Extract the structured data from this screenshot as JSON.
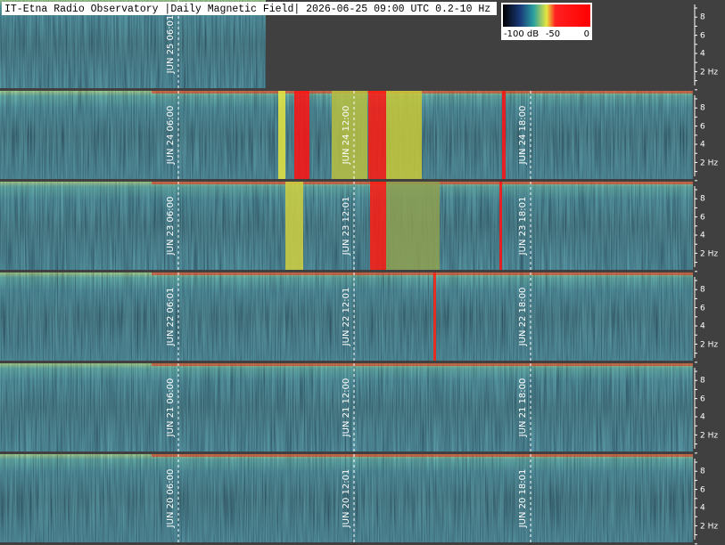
{
  "header": {
    "title": "IT-Etna Radio Observatory |Daily Magnetic Field| 2026-06-25 09:00 UTC 0.2-10 Hz"
  },
  "colorbar": {
    "labels": [
      "-100 dB",
      "-50",
      "0"
    ]
  },
  "frequency_ticks": [
    "8",
    "6",
    "4",
    "2 Hz"
  ],
  "panels": [
    {
      "time_labels": [
        "JUN 25 06:01"
      ]
    },
    {
      "time_labels": [
        "JUN 24 06:00",
        "JUN 24 12:00",
        "JUN 24 18:00"
      ]
    },
    {
      "time_labels": [
        "JUN 23 06:00",
        "JUN 23 12:01",
        "JUN 23 18:01"
      ]
    },
    {
      "time_labels": [
        "JUN 22 06:01",
        "JUN 22 12:01",
        "JUN 22 18:00"
      ]
    },
    {
      "time_labels": [
        "JUN 21 06:00",
        "JUN 21 12:00",
        "JUN 21 18:00"
      ]
    },
    {
      "time_labels": [
        "JUN 20 06:00",
        "JUN 20 12:01",
        "JUN 20 18:01"
      ]
    }
  ]
}
